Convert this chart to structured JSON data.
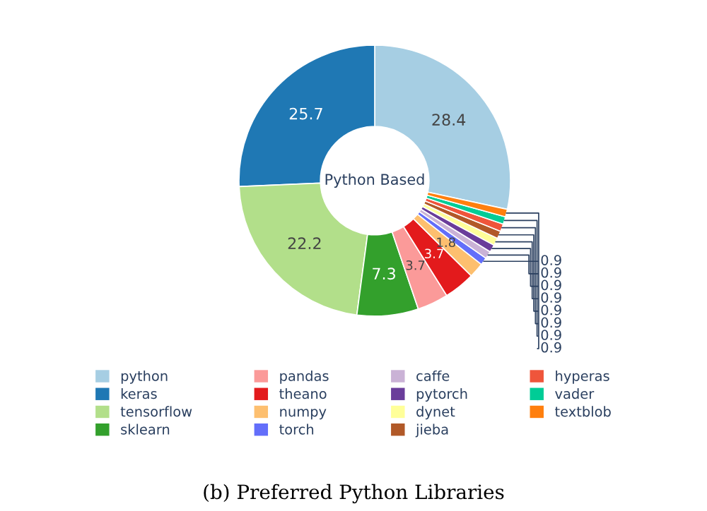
{
  "chart_data": {
    "type": "donut",
    "title": "(b) Preferred Python Libraries",
    "annotations": [
      "Python Based"
    ],
    "categories": [
      "python",
      "keras",
      "tensorflow",
      "sklearn",
      "pandas",
      "theano",
      "numpy",
      "torch",
      "caffe",
      "pytorch",
      "dynet",
      "jieba",
      "hyperas",
      "vader",
      "textblob"
    ],
    "values": [
      28.4,
      25.7,
      22.2,
      7.3,
      3.7,
      3.7,
      1.8,
      0.9,
      0.9,
      0.9,
      0.9,
      0.9,
      0.9,
      0.9,
      0.9
    ],
    "colors": [
      "#a6cee3",
      "#1f78b4",
      "#b2df8a",
      "#33a02c",
      "#fb9a99",
      "#e31a1c",
      "#fdbf6f",
      "#636efa",
      "#cab2d6",
      "#6a3d9a",
      "#ffff99",
      "#b15928",
      "#ef553b",
      "#00cc96",
      "#ff7f0e"
    ],
    "data_labels": true,
    "legend": "bottom"
  }
}
